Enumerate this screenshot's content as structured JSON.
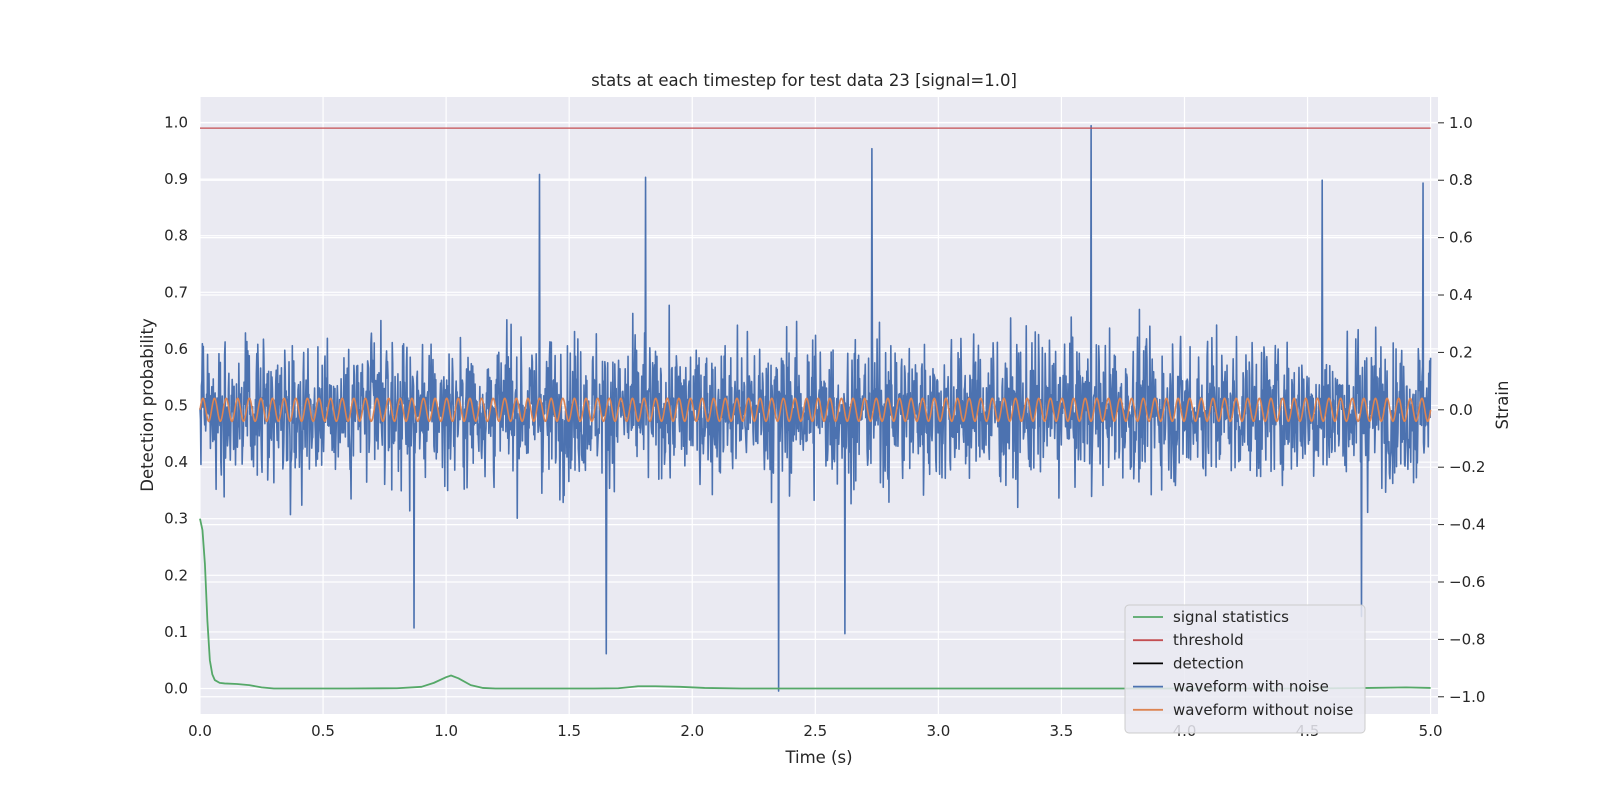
{
  "chart_data": {
    "type": "line",
    "title": "stats at each timestep for test data 23 [signal=1.0]",
    "xlabel": "Time (s)",
    "ylabel_left": "Detection probability",
    "ylabel_right": "Strain",
    "xlim": [
      0,
      5.03
    ],
    "ylim_left": [
      -0.045,
      1.045
    ],
    "ylim_right": [
      -1.06,
      1.09
    ],
    "x_ticks": [
      "0.0",
      "0.5",
      "1.0",
      "1.5",
      "2.0",
      "2.5",
      "3.0",
      "3.5",
      "4.0",
      "4.5",
      "5.0"
    ],
    "y_left_ticks": [
      "0.0",
      "0.1",
      "0.2",
      "0.3",
      "0.4",
      "0.5",
      "0.6",
      "0.7",
      "0.8",
      "0.9",
      "1.0"
    ],
    "y_right_ticks": [
      "−1.0",
      "−0.8",
      "−0.6",
      "−0.4",
      "−0.2",
      "0.0",
      "0.2",
      "0.4",
      "0.6",
      "0.8",
      "1.0"
    ],
    "grid": true,
    "legend_position": "lower-right",
    "colors": {
      "background": "#eaeaf2",
      "grid": "#ffffff",
      "signal_statistics": "#55a868",
      "threshold": "#c44e52",
      "detection": "#000000",
      "waveform_with_noise": "#4c72b0",
      "waveform_without_noise": "#dd8452"
    },
    "series": [
      {
        "name": "signal statistics",
        "axis": "left",
        "x": [
          0.0,
          0.01,
          0.02,
          0.03,
          0.04,
          0.05,
          0.06,
          0.08,
          0.1,
          0.15,
          0.2,
          0.25,
          0.3,
          0.4,
          0.6,
          0.8,
          0.9,
          0.95,
          1.0,
          1.02,
          1.05,
          1.1,
          1.15,
          1.2,
          1.4,
          1.6,
          1.7,
          1.78,
          1.85,
          1.95,
          2.05,
          2.2,
          2.5,
          3.0,
          3.5,
          4.0,
          4.5,
          4.75,
          4.9,
          5.0
        ],
        "values": [
          0.3,
          0.28,
          0.22,
          0.12,
          0.05,
          0.025,
          0.015,
          0.01,
          0.009,
          0.008,
          0.006,
          0.002,
          0.0,
          0.0,
          0.0,
          0.0005,
          0.003,
          0.01,
          0.02,
          0.023,
          0.018,
          0.006,
          0.001,
          0.0,
          0.0,
          0.0,
          0.0005,
          0.004,
          0.004,
          0.003,
          0.001,
          0.0,
          0.0,
          0.0,
          0.0,
          0.0,
          0.0,
          0.001,
          0.002,
          0.001
        ]
      },
      {
        "name": "threshold",
        "axis": "left",
        "x": [
          0.0,
          5.0
        ],
        "values": [
          0.99,
          0.99
        ]
      },
      {
        "name": "detection",
        "axis": "left",
        "x": [],
        "values": []
      },
      {
        "name": "waveform with noise",
        "axis": "right",
        "x_range": [
          0.0,
          5.0
        ],
        "samples": 2600,
        "noise_std": 0.22,
        "notable_peaks": [
          {
            "x": 3.62,
            "y": 0.99
          },
          {
            "x": 2.73,
            "y": 0.91
          },
          {
            "x": 1.38,
            "y": 0.82
          },
          {
            "x": 1.81,
            "y": 0.81
          },
          {
            "x": 4.97,
            "y": 0.79
          },
          {
            "x": 4.56,
            "y": 0.8
          },
          {
            "x": 2.35,
            "y": -0.98
          },
          {
            "x": 1.65,
            "y": -0.85
          },
          {
            "x": 0.87,
            "y": -0.76
          },
          {
            "x": 2.62,
            "y": -0.78
          },
          {
            "x": 4.72,
            "y": -0.72
          }
        ]
      },
      {
        "name": "waveform without noise",
        "axis": "right",
        "x_range": [
          0.0,
          5.0
        ],
        "amplitude": 0.04,
        "cycles": 106
      }
    ]
  }
}
